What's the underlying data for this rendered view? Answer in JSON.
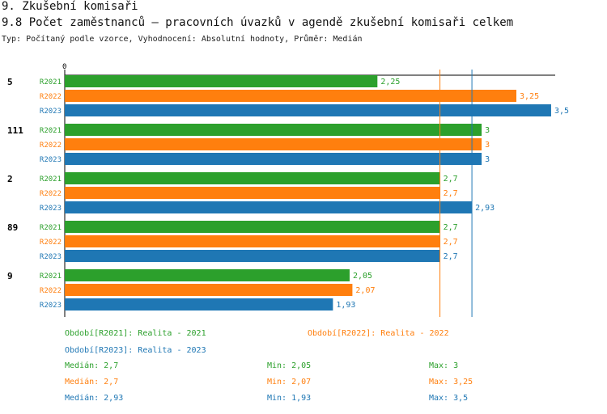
{
  "header": {
    "section": "9. Zkušební komisaři",
    "title": "9.8 Počet zaměstnanců – pracovních úvazků v agendě zkušební komisaři celkem",
    "subtitle": "Typ: Počítaný podle vzorce, Vyhodnocení: Absolutní hodnoty, Průměr: Medián"
  },
  "colors": {
    "R2021": "#2ca02c",
    "R2022": "#ff7f0e",
    "R2023": "#1f77b4"
  },
  "chart_data": {
    "type": "bar",
    "orientation": "horizontal",
    "x_tick_label": "0",
    "xlim": [
      0,
      3.5
    ],
    "categories": [
      "5",
      "111",
      "2",
      "89",
      "9"
    ],
    "series": [
      {
        "name": "R2021",
        "values": [
          2.25,
          3,
          2.7,
          2.7,
          2.05
        ],
        "labels": [
          "2,25",
          "3",
          "2,7",
          "2,7",
          "2,05"
        ]
      },
      {
        "name": "R2022",
        "values": [
          3.25,
          3,
          2.7,
          2.7,
          2.07
        ],
        "labels": [
          "3,25",
          "3",
          "2,7",
          "2,7",
          "2,07"
        ]
      },
      {
        "name": "R2023",
        "values": [
          3.5,
          3,
          2.93,
          2.7,
          1.93
        ],
        "labels": [
          "3,5",
          "3",
          "2,93",
          "2,7",
          "1,93"
        ]
      }
    ],
    "reference_lines": [
      {
        "series": "R2022",
        "value": 2.7
      },
      {
        "series": "R2023",
        "value": 2.93
      }
    ]
  },
  "legend": {
    "periods": [
      {
        "key": "R2021",
        "text": "Období[R2021]: Realita - 2021"
      },
      {
        "key": "R2022",
        "text": "Období[R2022]: Realita - 2022"
      },
      {
        "key": "R2023",
        "text": "Období[R2023]: Realita - 2023"
      }
    ],
    "stats": [
      {
        "key": "R2021",
        "median": "Medián: 2,7",
        "min": "Min: 2,05",
        "max": "Max: 3"
      },
      {
        "key": "R2022",
        "median": "Medián: 2,7",
        "min": "Min: 2,07",
        "max": "Max: 3,25"
      },
      {
        "key": "R2023",
        "median": "Medián: 2,93",
        "min": "Min: 1,93",
        "max": "Max: 3,5"
      }
    ]
  }
}
